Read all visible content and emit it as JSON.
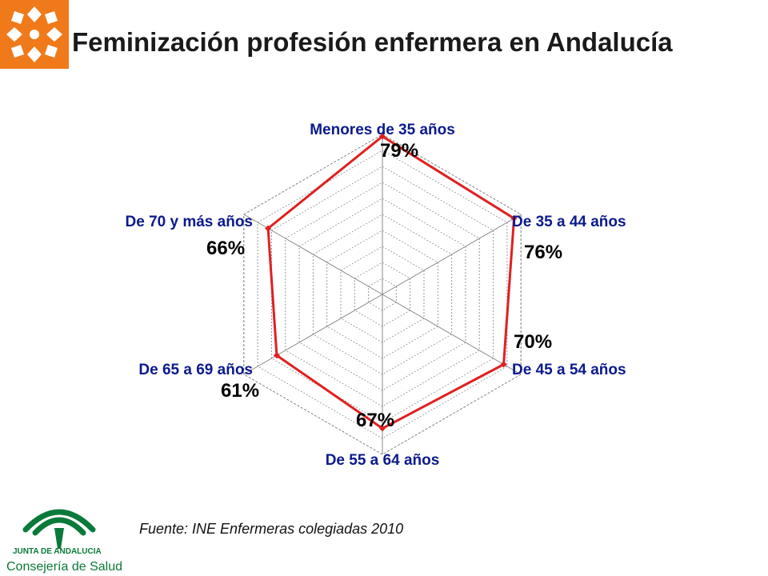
{
  "header": {
    "title": "Feminización profesión enfermera en Andalucía"
  },
  "footer": {
    "source": "Fuente: INE Enfermeras colegiadas 2010",
    "logo_line1": "JUNTA DE ANDALUCIA",
    "logo_line2": "Consejería de Salud"
  },
  "colors": {
    "series": "#e02020",
    "category_text": "#0b1a8c",
    "logo_orange": "#f07a1a",
    "logo_green": "#0a7a3a"
  },
  "chart_data": {
    "type": "radar",
    "categories": [
      "Menores de 35 años",
      "De 35 a 44 años",
      "De 45 a 54 años",
      "De 55 a 64 años",
      "De 65 a 69 años",
      "De 70 y más años"
    ],
    "values": [
      79,
      76,
      70,
      67,
      61,
      66
    ],
    "value_labels": [
      "79%",
      "76%",
      "70%",
      "67%",
      "61%",
      "66%"
    ],
    "range": [
      0,
      80
    ],
    "rings": 10,
    "grid": true,
    "legend": false
  }
}
